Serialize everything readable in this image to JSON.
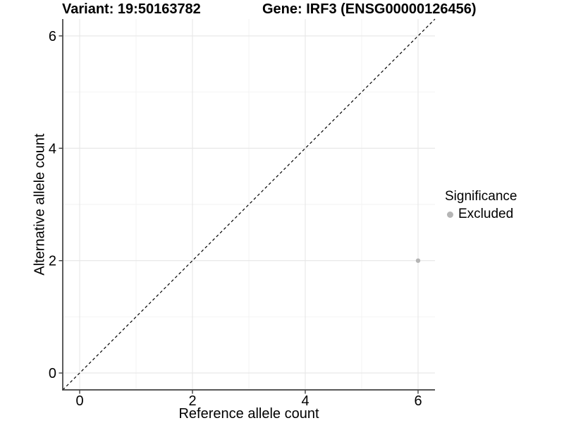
{
  "titles": {
    "variant": "Variant: 19:50163782",
    "gene": "Gene: IRF3 (ENSG00000126456)"
  },
  "axes": {
    "x": {
      "label": "Reference allele count",
      "ticks": [
        "0",
        "2",
        "4",
        "6"
      ]
    },
    "y": {
      "label": "Alternative allele count",
      "ticks": [
        "0",
        "2",
        "4",
        "6"
      ]
    }
  },
  "legend": {
    "title": "Significance",
    "items": [
      {
        "label": "Excluded",
        "color": "#b5b5b5"
      }
    ]
  },
  "chart_data": {
    "type": "scatter",
    "title": "Variant: 19:50163782 — Gene: IRF3 (ENSG00000126456)",
    "xlabel": "Reference allele count",
    "ylabel": "Alternative allele count",
    "xlim": [
      -0.3,
      6.3
    ],
    "ylim": [
      -0.3,
      6.3
    ],
    "x_major_ticks": [
      0,
      2,
      4,
      6
    ],
    "y_major_ticks": [
      0,
      2,
      4,
      6
    ],
    "x_minor_gridlines": [
      1,
      3,
      5
    ],
    "y_minor_gridlines": [
      1,
      3,
      5
    ],
    "grid": true,
    "legend_position": "right",
    "series": [
      {
        "name": "Excluded",
        "color": "#b5b5b5",
        "point_radius": 3.2,
        "points": [
          {
            "x": 6,
            "y": 2
          }
        ]
      }
    ],
    "reference_line": {
      "kind": "identity",
      "style": "dashed",
      "color": "#000000"
    },
    "colors": {
      "grid_major": "#e6e6e6",
      "grid_minor": "#f2f2f2",
      "axis_line": "#404040",
      "tick_text": "#000000"
    }
  }
}
